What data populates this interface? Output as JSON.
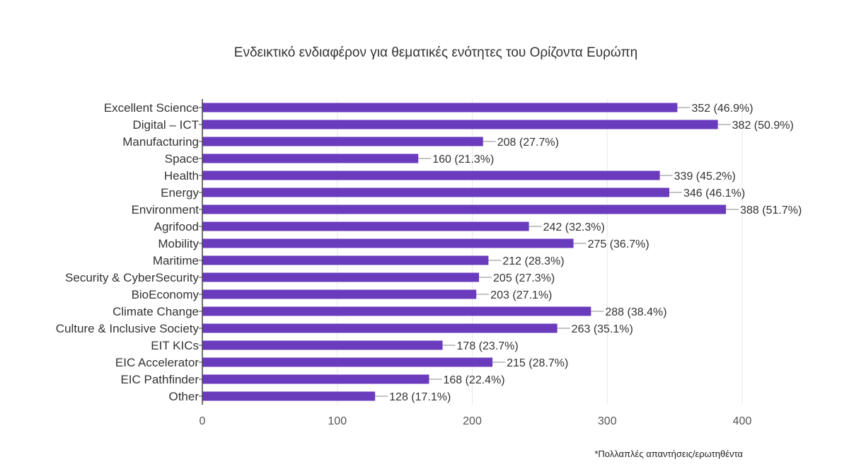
{
  "chart_data": {
    "type": "bar",
    "orientation": "horizontal",
    "title": "Ενδεικτικό ενδιαφέρον για θεματικές ενότητες του Ορίζοντα Ευρώπη",
    "xlabel": "",
    "ylabel": "",
    "xlim": [
      0,
      400
    ],
    "xticks": [
      "0",
      "100",
      "200",
      "300",
      "400"
    ],
    "grid": true,
    "legend": "none",
    "bar_color": "#6a3bbd",
    "categories": [
      "Excellent Science",
      "Digital – ICT",
      "Manufacturing",
      "Space",
      "Health",
      "Energy",
      "Environment",
      "Agrifood",
      "Mobility",
      "Maritime",
      "Security & CyberSecurity",
      "BioEconomy",
      "Climate Change",
      "Culture & Inclusive Society",
      "EIT KICs",
      "EIC Accelerator",
      "EIC Pathfinder",
      "Other"
    ],
    "values": [
      352,
      382,
      208,
      160,
      339,
      346,
      388,
      242,
      275,
      212,
      205,
      203,
      288,
      263,
      178,
      215,
      168,
      128
    ],
    "data_labels": [
      "352 (46.9%)",
      "382 (50.9%)",
      "208 (27.7%)",
      "160 (21.3%)",
      "339 (45.2%)",
      "346 (46.1%)",
      "388 (51.7%)",
      "242 (32.3%)",
      "275 (36.7%)",
      "212 (28.3%)",
      "205 (27.3%)",
      "203 (27.1%)",
      "288 (38.4%)",
      "263 (35.1%)",
      "178 (23.7%)",
      "215 (28.7%)",
      "168 (22.4%)",
      "128 (17.1%)"
    ],
    "footnote": "*Πολλαπλές απαντήσεις/ερωτηθέντα"
  }
}
